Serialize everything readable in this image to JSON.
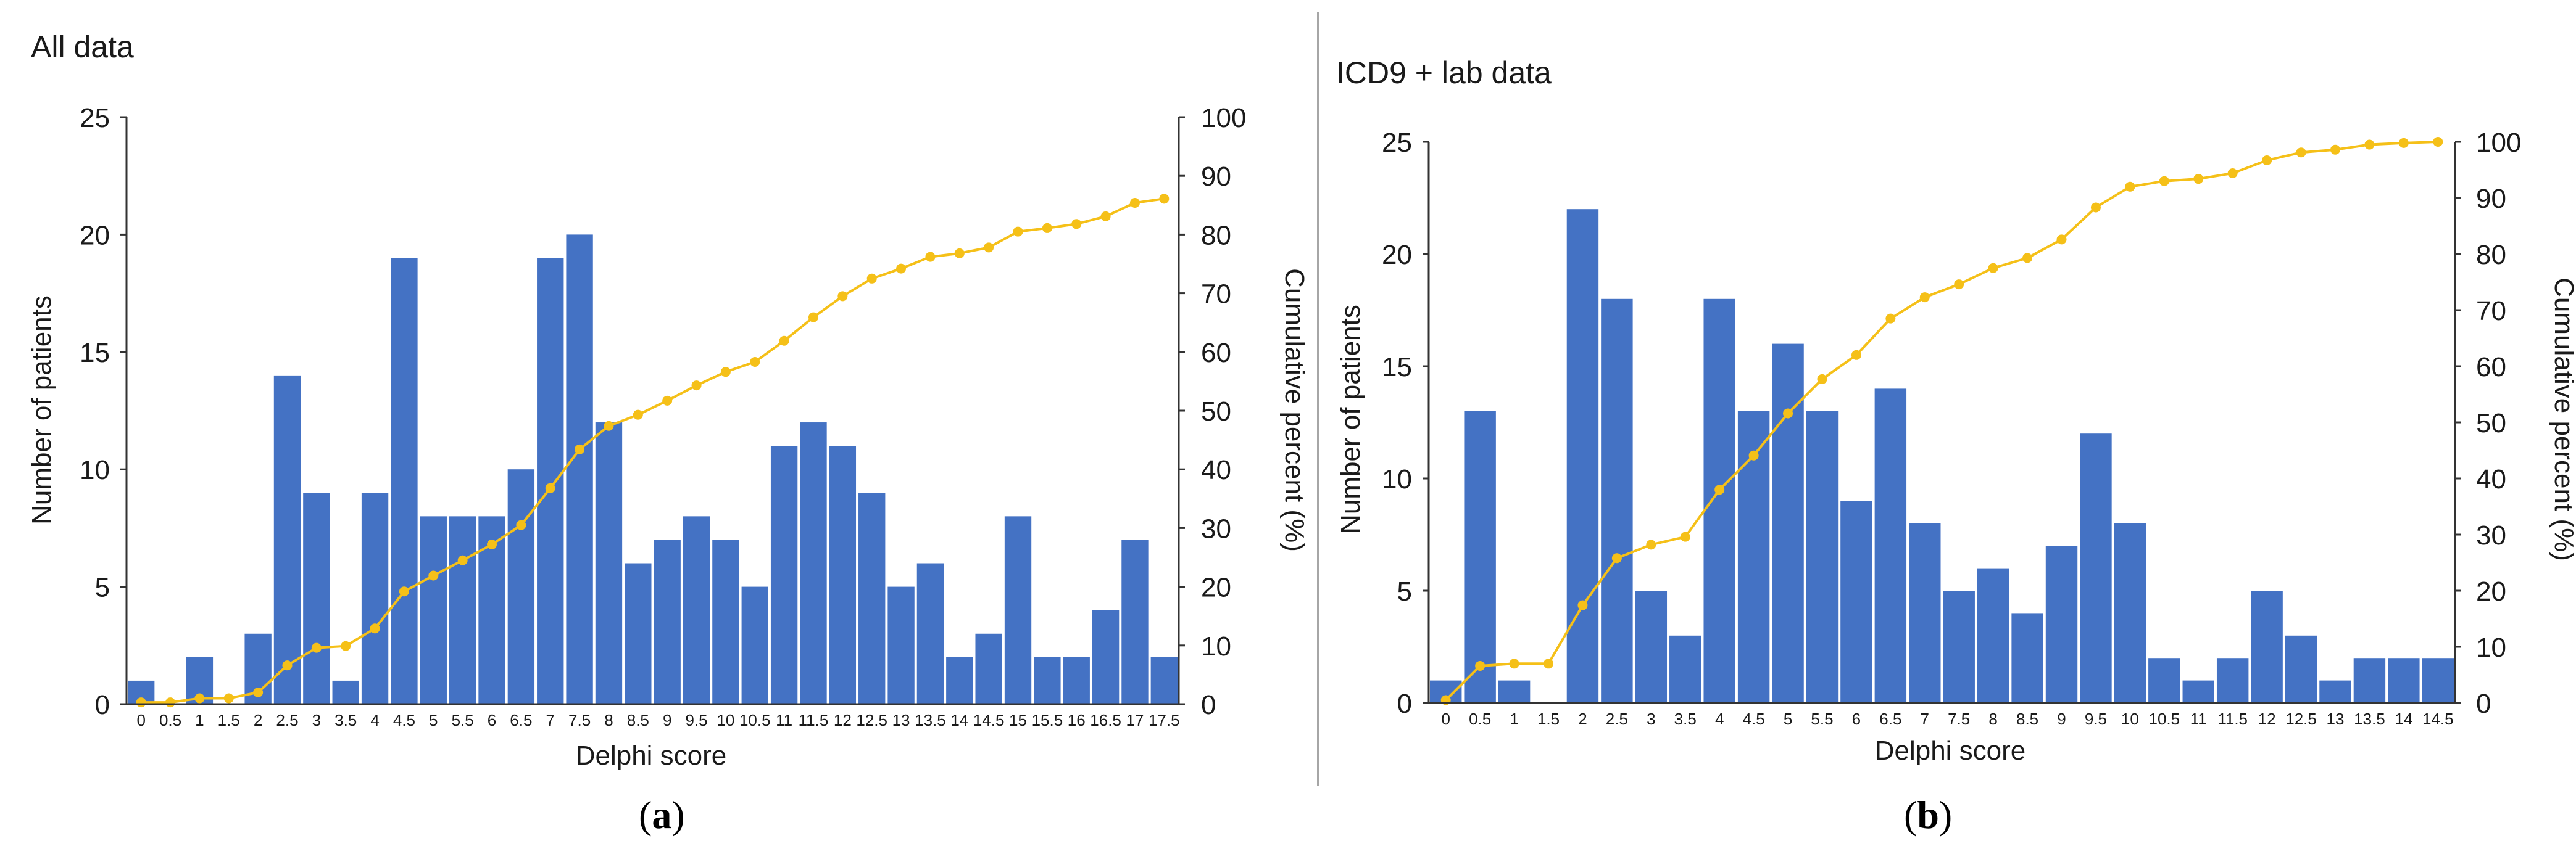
{
  "sublabels": {
    "a": "a",
    "b": "b"
  },
  "chart_data": [
    {
      "type": "bar",
      "title": "All data",
      "xlabel": "Delphi score",
      "ylabel": "Number of patients",
      "y2label": "Cumulative percent (%)",
      "ylim": [
        0,
        25
      ],
      "y2lim": [
        0,
        100
      ],
      "yticks": [
        "0",
        "5",
        "10",
        "15",
        "20",
        "25"
      ],
      "y2ticks": [
        "0",
        "10",
        "20",
        "30",
        "40",
        "50",
        "60",
        "70",
        "80",
        "90",
        "100"
      ],
      "bar_color": "#4472c4",
      "line_color": "#f5c018",
      "categories": [
        "0",
        "0.5",
        "1",
        "1.5",
        "2",
        "2.5",
        "3",
        "3.5",
        "4",
        "4.5",
        "5",
        "5.5",
        "6",
        "6.5",
        "7",
        "7.5",
        "8",
        "8.5",
        "9",
        "9.5",
        "10",
        "10.5",
        "11",
        "11.5",
        "12",
        "12.5",
        "13",
        "13.5",
        "14",
        "14.5",
        "15",
        "15.5",
        "16",
        "16.5",
        "17",
        "17.5"
      ],
      "values": [
        1,
        0,
        2,
        0,
        3,
        14,
        9,
        1,
        9,
        19,
        8,
        8,
        8,
        10,
        19,
        20,
        12,
        6,
        7,
        8,
        7,
        5,
        11,
        12,
        11,
        9,
        5,
        6,
        2,
        3,
        8,
        2,
        2,
        4,
        7,
        2
      ],
      "cumulative": [
        0.3,
        0.3,
        1.0,
        1.0,
        2.0,
        6.6,
        9.6,
        9.9,
        12.9,
        19.2,
        21.9,
        24.5,
        27.2,
        30.5,
        36.8,
        43.4,
        47.4,
        49.3,
        51.7,
        54.3,
        56.6,
        58.3,
        61.9,
        65.9,
        69.5,
        72.5,
        74.2,
        76.2,
        76.8,
        77.8,
        80.5,
        81.1,
        81.8,
        83.1,
        85.4,
        86.1
      ]
    },
    {
      "type": "bar",
      "title": "ICD9 + lab data",
      "xlabel": "Delphi score",
      "ylabel": "Number of patients",
      "y2label": "Cumulative percent (%)",
      "ylim": [
        0,
        25
      ],
      "y2lim": [
        0,
        100
      ],
      "yticks": [
        "0",
        "5",
        "10",
        "15",
        "20",
        "25"
      ],
      "y2ticks": [
        "0",
        "10",
        "20",
        "30",
        "40",
        "50",
        "60",
        "70",
        "80",
        "90",
        "100"
      ],
      "bar_color": "#4472c4",
      "line_color": "#f5c018",
      "categories": [
        "0",
        "0.5",
        "1",
        "1.5",
        "2",
        "2.5",
        "3",
        "3.5",
        "4",
        "4.5",
        "5",
        "5.5",
        "6",
        "6.5",
        "7",
        "7.5",
        "8",
        "8.5",
        "9",
        "9.5",
        "10",
        "10.5",
        "11",
        "11.5",
        "12",
        "12.5",
        "13",
        "13.5",
        "14",
        "14.5"
      ],
      "values": [
        1,
        13,
        1,
        0,
        22,
        18,
        5,
        3,
        18,
        13,
        16,
        13,
        9,
        14,
        8,
        5,
        6,
        4,
        7,
        12,
        8,
        2,
        1,
        2,
        5,
        3,
        1,
        2,
        2,
        2
      ],
      "cumulative": [
        0.5,
        6.6,
        7.0,
        7.0,
        17.4,
        25.8,
        28.2,
        29.6,
        38.0,
        44.1,
        51.6,
        57.7,
        62.0,
        68.5,
        72.3,
        74.6,
        77.5,
        79.3,
        82.6,
        88.3,
        92.0,
        93.0,
        93.4,
        94.4,
        96.7,
        98.1,
        98.6,
        99.5,
        99.8,
        100
      ]
    }
  ]
}
